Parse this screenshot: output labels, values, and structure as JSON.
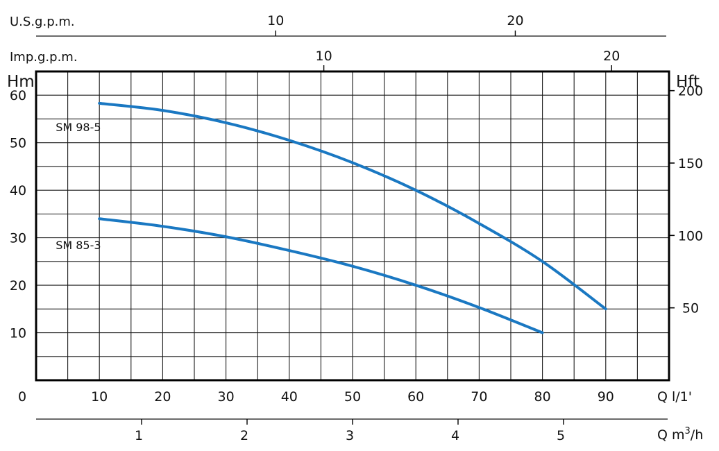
{
  "chart_data": {
    "type": "line",
    "title": "",
    "x_axis": {
      "label": "Q l/1'",
      "range": [
        0,
        100
      ],
      "ticks": [
        "0",
        "10",
        "20",
        "30",
        "40",
        "50",
        "60",
        "70",
        "80",
        "90"
      ],
      "tick_values": [
        0,
        10,
        20,
        30,
        40,
        50,
        60,
        70,
        80,
        90
      ]
    },
    "y_axis_left": {
      "label": "Hm",
      "range": [
        0,
        65
      ],
      "ticks": [
        "10",
        "20",
        "30",
        "40",
        "50",
        "60"
      ],
      "tick_values": [
        10,
        20,
        30,
        40,
        50,
        60
      ]
    },
    "y_axis_right": {
      "label": "Hft",
      "ticks": [
        "50",
        "100",
        "150",
        "200"
      ],
      "tick_values_ft": [
        50,
        100,
        150,
        200
      ]
    },
    "top_axis_usgpm": {
      "label": "U.S.g.p.m.",
      "ticks": [
        "10",
        "20"
      ],
      "tick_values": [
        10,
        20
      ]
    },
    "top_axis_impgpm": {
      "label": "Imp.g.p.m.",
      "ticks": [
        "10",
        "20"
      ],
      "tick_values": [
        10,
        20
      ]
    },
    "bottom_axis_m3h": {
      "label": "Q m",
      "label_sup": "3",
      "label_suffix": "/h",
      "ticks": [
        "1",
        "2",
        "3",
        "4",
        "5"
      ],
      "tick_values": [
        1,
        2,
        3,
        4,
        5
      ]
    },
    "grid": true,
    "series": [
      {
        "name": "SM 98-5",
        "color": "#1a78c2",
        "x": [
          10,
          20,
          30,
          40,
          50,
          60,
          70,
          80,
          90
        ],
        "y": [
          58.3,
          56.8,
          54.2,
          50.5,
          45.8,
          40.0,
          33.0,
          25.0,
          15.0
        ]
      },
      {
        "name": "SM 85-3",
        "color": "#1a78c2",
        "x": [
          10,
          20,
          30,
          40,
          50,
          60,
          70,
          80
        ],
        "y": [
          34.0,
          32.4,
          30.2,
          27.3,
          24.0,
          20.0,
          15.3,
          10.0
        ]
      }
    ]
  }
}
